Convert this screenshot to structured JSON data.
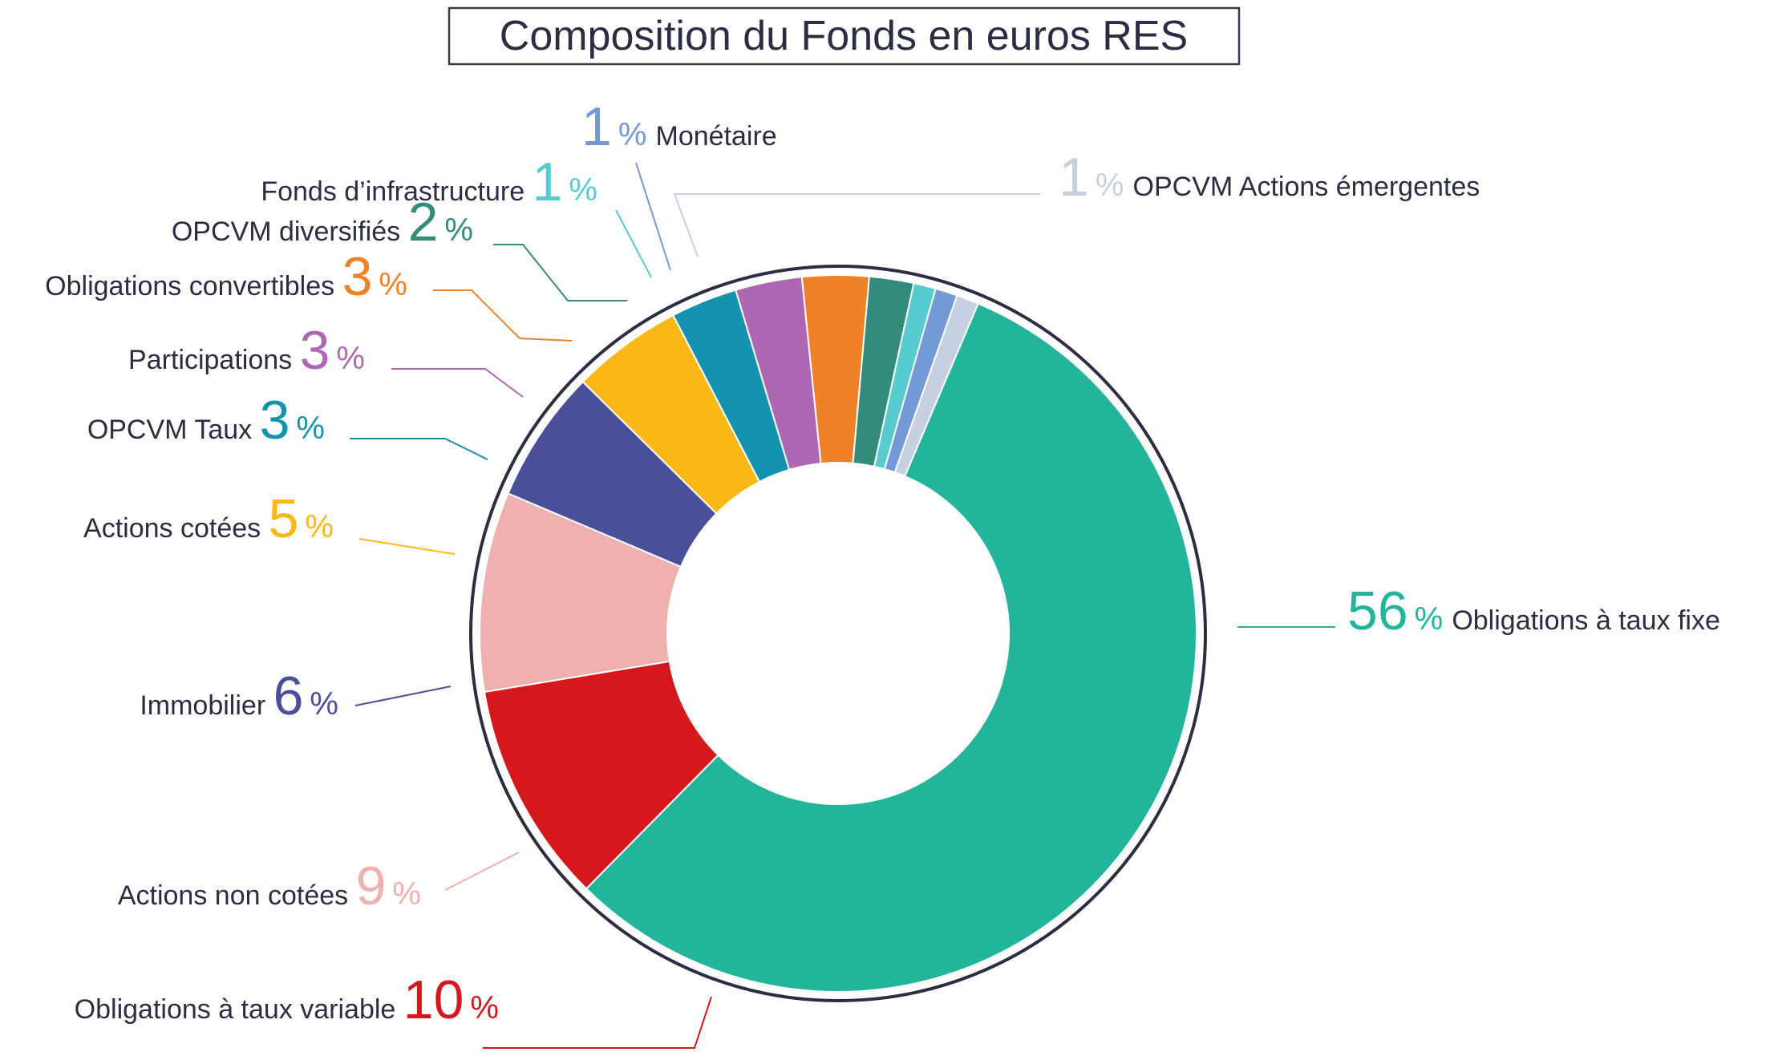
{
  "chart_data": {
    "type": "pie",
    "variant": "donut",
    "title": "Composition du Fonds en euros RES",
    "slices": [
      {
        "label": "Obligations à taux fixe",
        "value": 56,
        "display": "56",
        "unit": "%",
        "color": "#22b59b"
      },
      {
        "label": "Obligations à taux variable",
        "value": 10,
        "display": "10",
        "unit": "%",
        "color": "#d5181c"
      },
      {
        "label": "Actions non cotées",
        "value": 9,
        "display": "9",
        "unit": "%",
        "color": "#f0b0b0"
      },
      {
        "label": "Immobilier",
        "value": 6,
        "display": "6",
        "unit": "%",
        "color": "#4a4f9a"
      },
      {
        "label": "Actions cotées",
        "value": 5,
        "display": "5",
        "unit": "%",
        "color": "#fcb817"
      },
      {
        "label": "OPCVM Taux",
        "value": 3,
        "display": "3",
        "unit": "%",
        "color": "#1393b0"
      },
      {
        "label": "Participations",
        "value": 3,
        "display": "3",
        "unit": "%",
        "color": "#b067b3"
      },
      {
        "label": "Obligations convertibles",
        "value": 3,
        "display": "3",
        "unit": "%",
        "color": "#ef8228"
      },
      {
        "label": "OPCVM diversifiés",
        "value": 2,
        "display": "2",
        "unit": "%",
        "color": "#338b7c"
      },
      {
        "label": "Fonds d’infrastructure",
        "value": 1,
        "display": "1",
        "unit": "%",
        "color": "#56ccd0"
      },
      {
        "label": "Monétaire",
        "value": 1,
        "display": "1",
        "unit": "%",
        "color": "#7399d6"
      },
      {
        "label": "OPCVM Actions émergentes",
        "value": 1,
        "display": "1",
        "unit": "%",
        "color": "#c7d0e3"
      }
    ],
    "legend": "leader-line labels around the donut"
  }
}
